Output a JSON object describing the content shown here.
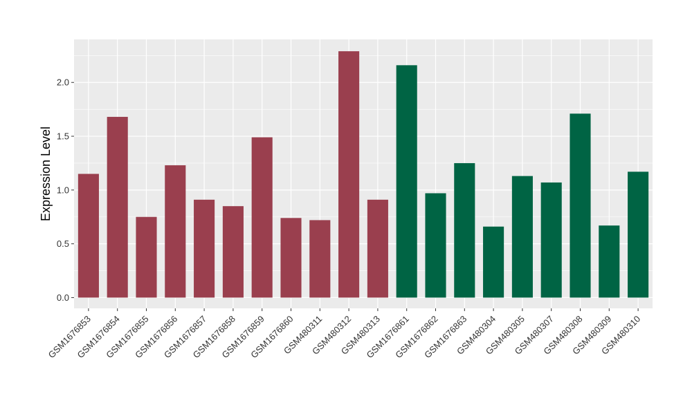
{
  "chart_data": {
    "type": "bar",
    "title": "",
    "xlabel": "",
    "ylabel": "Expression Level",
    "ylim": [
      -0.1,
      2.4
    ],
    "yticks": [
      0.0,
      0.5,
      1.0,
      1.5,
      2.0
    ],
    "ytick_labels": [
      "0.0",
      "0.5",
      "1.0",
      "1.5",
      "2.0"
    ],
    "grid": true,
    "legend": "none",
    "categories": [
      "GSM1676853",
      "GSM1676854",
      "GSM1676855",
      "GSM1676856",
      "GSM1676857",
      "GSM1676858",
      "GSM1676859",
      "GSM1676860",
      "GSM480311",
      "GSM480312",
      "GSM480313",
      "GSM1676861",
      "GSM1676862",
      "GSM1676863",
      "GSM480304",
      "GSM480305",
      "GSM480307",
      "GSM480308",
      "GSM480309",
      "GSM480310"
    ],
    "values": [
      1.15,
      1.68,
      0.75,
      1.23,
      0.91,
      0.85,
      1.49,
      0.74,
      0.72,
      2.29,
      0.91,
      2.16,
      0.97,
      1.25,
      0.66,
      1.13,
      1.07,
      1.71,
      0.67,
      1.17
    ],
    "group": [
      "a",
      "a",
      "a",
      "a",
      "a",
      "a",
      "a",
      "a",
      "a",
      "a",
      "a",
      "b",
      "b",
      "b",
      "b",
      "b",
      "b",
      "b",
      "b",
      "b"
    ],
    "colors": {
      "a": "#9a3f4e",
      "b": "#006444"
    },
    "panel_background": "#ebebeb",
    "grid_color": "#ffffff"
  }
}
